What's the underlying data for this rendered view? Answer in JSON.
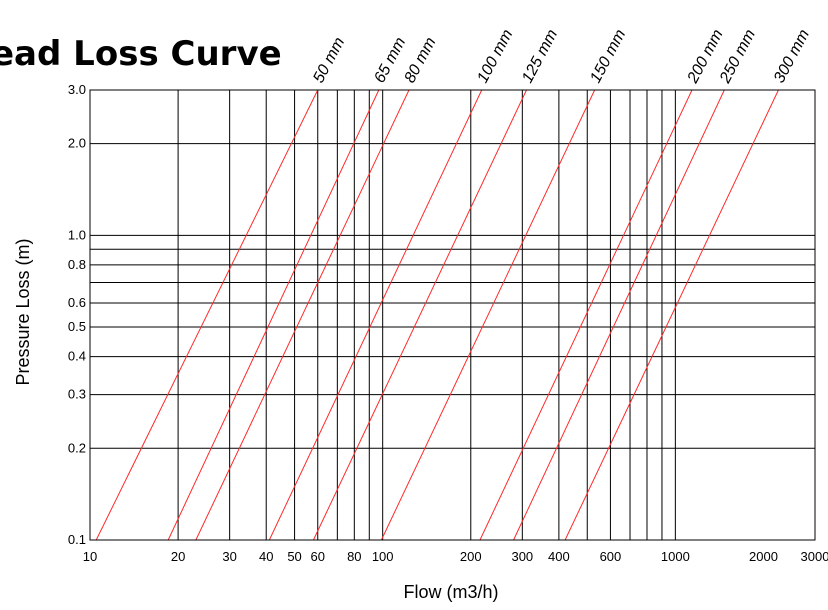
{
  "chart_data": {
    "type": "line",
    "title": "ead Loss Curve",
    "xlabel": "Flow (m3/h)",
    "ylabel": "Pressure Loss (m)",
    "x_scale": "log",
    "y_scale": "log",
    "xlim": [
      10,
      3000
    ],
    "ylim": [
      0.1,
      3.0
    ],
    "grid": true,
    "x_gridlines": [
      20,
      30,
      40,
      50,
      60,
      70,
      80,
      90,
      100,
      200,
      300,
      400,
      500,
      600,
      700,
      800,
      900,
      1000
    ],
    "y_gridlines": [
      0.2,
      0.3,
      0.4,
      0.5,
      0.6,
      0.7,
      0.8,
      0.9,
      1.0,
      2.0
    ],
    "x_ticks": [
      {
        "value": 10,
        "label": "10"
      },
      {
        "value": 20,
        "label": "20"
      },
      {
        "value": 30,
        "label": "30"
      },
      {
        "value": 40,
        "label": "40"
      },
      {
        "value": 50,
        "label": "50"
      },
      {
        "value": 60,
        "label": "60"
      },
      {
        "value": 80,
        "label": "80"
      },
      {
        "value": 100,
        "label": "100"
      },
      {
        "value": 200,
        "label": "200"
      },
      {
        "value": 300,
        "label": "300"
      },
      {
        "value": 400,
        "label": "400"
      },
      {
        "value": 600,
        "label": "600"
      },
      {
        "value": 1000,
        "label": "1000"
      },
      {
        "value": 2000,
        "label": "2000"
      },
      {
        "value": 3000,
        "label": "3000"
      }
    ],
    "y_ticks": [
      {
        "value": 0.1,
        "label": "0.1"
      },
      {
        "value": 0.2,
        "label": "0.2"
      },
      {
        "value": 0.3,
        "label": "0.3"
      },
      {
        "value": 0.4,
        "label": "0.4"
      },
      {
        "value": 0.5,
        "label": "0.5"
      },
      {
        "value": 0.6,
        "label": "0.6"
      },
      {
        "value": 0.8,
        "label": "0.8"
      },
      {
        "value": 1.0,
        "label": "1.0"
      },
      {
        "value": 2.0,
        "label": "2.0"
      },
      {
        "value": 3.0,
        "label": "3.0"
      }
    ],
    "series": [
      {
        "name": "50 mm",
        "color": "#ff2a2a",
        "points": [
          [
            10.5,
            0.1
          ],
          [
            60,
            3.0
          ]
        ]
      },
      {
        "name": "65 mm",
        "color": "#ff2a2a",
        "points": [
          [
            18.5,
            0.1
          ],
          [
            97,
            3.0
          ]
        ]
      },
      {
        "name": "80 mm",
        "color": "#ff2a2a",
        "points": [
          [
            23,
            0.1
          ],
          [
            123,
            3.0
          ]
        ]
      },
      {
        "name": "100 mm",
        "color": "#ff2a2a",
        "points": [
          [
            41,
            0.1
          ],
          [
            218,
            3.0
          ]
        ]
      },
      {
        "name": "125 mm",
        "color": "#ff2a2a",
        "points": [
          [
            58,
            0.1
          ],
          [
            310,
            3.0
          ]
        ]
      },
      {
        "name": "150 mm",
        "color": "#ff2a2a",
        "points": [
          [
            99,
            0.1
          ],
          [
            530,
            3.0
          ]
        ]
      },
      {
        "name": "200 mm",
        "color": "#ff2a2a",
        "points": [
          [
            215,
            0.1
          ],
          [
            1140,
            3.0
          ]
        ]
      },
      {
        "name": "250 mm",
        "color": "#ff2a2a",
        "points": [
          [
            280,
            0.1
          ],
          [
            1470,
            3.0
          ]
        ]
      },
      {
        "name": "300 mm",
        "color": "#ff2a2a",
        "points": [
          [
            420,
            0.1
          ],
          [
            2250,
            3.0
          ]
        ]
      }
    ]
  }
}
